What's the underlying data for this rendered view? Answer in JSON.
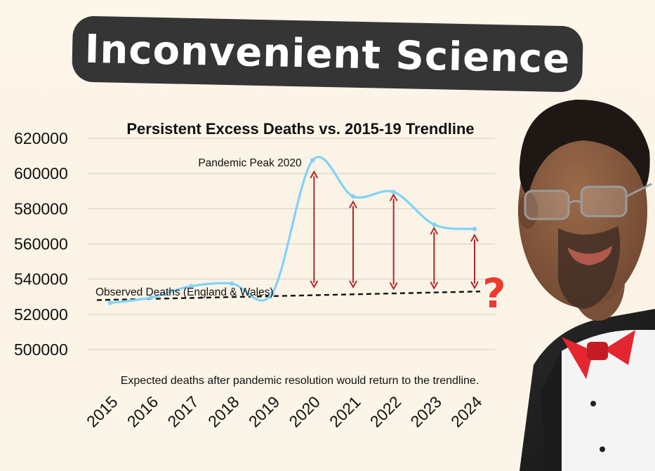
{
  "banner": {
    "title": "Inconvenient Science"
  },
  "chart_data": {
    "type": "line",
    "title": "Persistent Excess Deaths vs. 2015-19 Trendline",
    "xlabel": "",
    "ylabel": "",
    "ylim": [
      500000,
      620000
    ],
    "yticks": [
      620000,
      600000,
      580000,
      560000,
      540000,
      520000,
      500000
    ],
    "categories": [
      "2015",
      "2016",
      "2017",
      "2018",
      "2019",
      "2020",
      "2021",
      "2022",
      "2023",
      "2024"
    ],
    "series": [
      {
        "name": "Observed Deaths (England & Wales)",
        "color": "#7fd3f7",
        "values": [
          526500,
          529500,
          536000,
          537500,
          532000,
          607500,
          587000,
          589500,
          571000,
          568500
        ]
      }
    ],
    "trendline": {
      "name": "2015-19 Trendline",
      "color": "#111111",
      "start": 528500,
      "end": 533000
    },
    "excess_arrows": {
      "color": "#b3262d",
      "years": [
        "2020",
        "2021",
        "2022",
        "2023",
        "2024"
      ],
      "tops": [
        601000,
        584000,
        588000,
        569000,
        565000
      ],
      "bottoms": [
        535500,
        535500,
        534500,
        534800,
        535000
      ]
    },
    "annotations": {
      "peak": "Pandemic Peak 2020",
      "observed": "Observed Deaths (England & Wales)",
      "expected": "Expected deaths after pandemic resolution would return to the trendline.",
      "question": "?"
    }
  }
}
